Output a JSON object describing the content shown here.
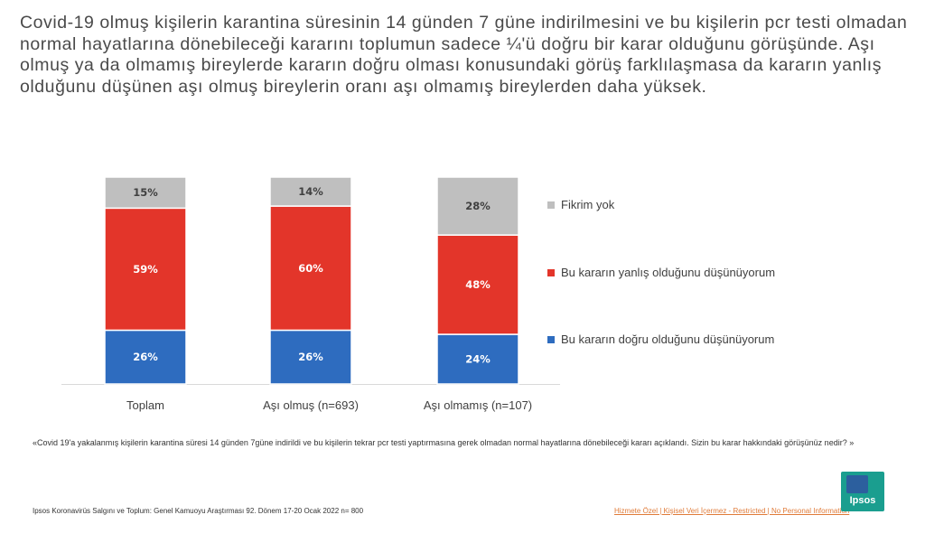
{
  "headline": "Covid-19 olmuş kişilerin karantina süresinin 14 günden 7 güne indirilmesini ve bu kişilerin pcr testi olmadan normal hayatlarına dönebileceği kararını toplumun sadece ¼'ü doğru bir karar olduğunu görüşünde. Aşı olmuş ya da olmamış bireylerde kararın doğru olması konusundaki görüş farklılaşmasa da kararın yanlış olduğunu düşünen aşı olmuş bireylerin oranı aşı olmamış bireylerden daha yüksek.",
  "question": "«Covid 19'a yakalanmış kişilerin karantina süresi 14 günden 7güne indirildi ve bu kişilerin tekrar pcr testi yaptırmasına gerek olmadan normal hayatlarına dönebileceği kararı açıklandı. Sizin bu karar hakkındaki görüşünüz nedir? »",
  "footer": {
    "source": "Ipsos Koronavirüs Salgını ve Toplum: Genel Kamuoyu Araştırması 92. Dönem 17-20 Ocak 2022 n= 800",
    "classification": "Hizmete Özel | Kişisel Veri İçermez - Restricted | No Personal Information",
    "logo_text": "Ipsos"
  },
  "colors": {
    "grey": "#bfbfbf",
    "red": "#e3352a",
    "blue": "#2e6cbf"
  },
  "chart_data": {
    "type": "bar",
    "stacked": true,
    "categories": [
      "Toplam",
      "Aşı olmuş (n=693)",
      "Aşı olmamış (n=107)"
    ],
    "series": [
      {
        "name": "Bu kararın doğru olduğunu düşünüyorum",
        "values": [
          26,
          26,
          24
        ],
        "labels": [
          "26%",
          "26%",
          "24%"
        ],
        "color": "#2e6cbf"
      },
      {
        "name": "Bu kararın yanlış olduğunu düşünüyorum",
        "values": [
          59,
          60,
          48
        ],
        "labels": [
          "59%",
          "60%",
          "48%"
        ],
        "color": "#e3352a"
      },
      {
        "name": "Fikrim yok",
        "values": [
          15,
          14,
          28
        ],
        "labels": [
          "15%",
          "14%",
          "28%"
        ],
        "color": "#bfbfbf"
      }
    ],
    "ylim": [
      0,
      100
    ],
    "legend_placement": "right",
    "legend_order": [
      "Fikrim yok",
      "Bu kararın yanlış olduğunu düşünüyorum",
      "Bu kararın doğru olduğunu düşünüyorum"
    ]
  }
}
